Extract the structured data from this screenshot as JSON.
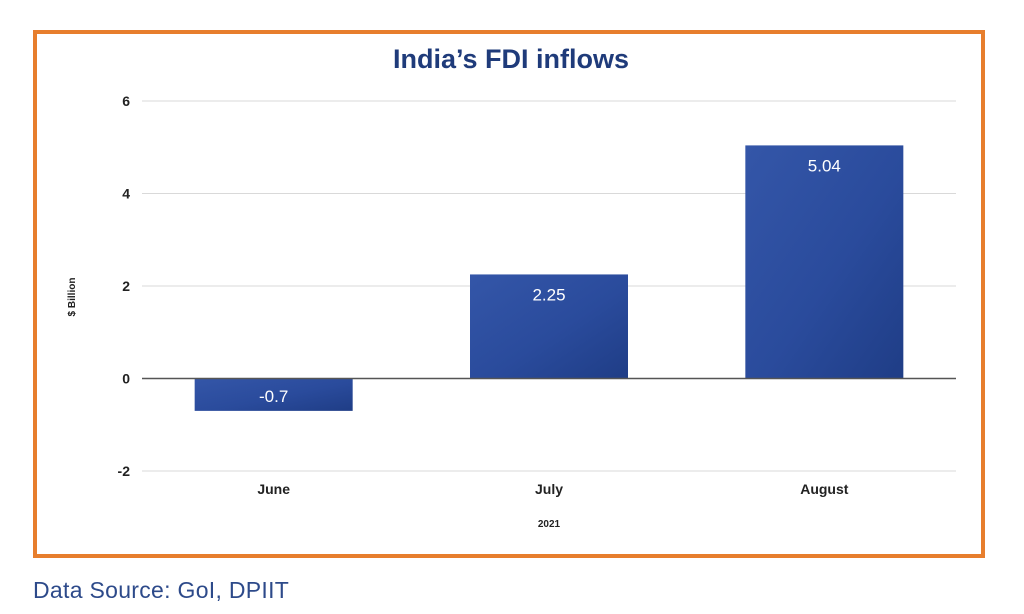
{
  "chart_data": {
    "type": "bar",
    "title": "India’s FDI inflows",
    "xlabel": "2021",
    "ylabel": "$ Billion",
    "categories": [
      "June",
      "July",
      "August"
    ],
    "values": [
      -0.7,
      2.25,
      5.04
    ],
    "data_labels": [
      "-0.7",
      "2.25",
      "5.04"
    ],
    "ylim": [
      -2,
      6
    ],
    "yticks": [
      -2,
      0,
      2,
      4,
      6
    ],
    "ytick_labels": [
      "-2",
      "0",
      "2",
      "4",
      "6"
    ],
    "grid": true,
    "legend": "none",
    "bar_color": "#2a4b9c",
    "frame_color": "#e77e2d"
  },
  "source_text": "Data Source: GoI, DPIIT"
}
